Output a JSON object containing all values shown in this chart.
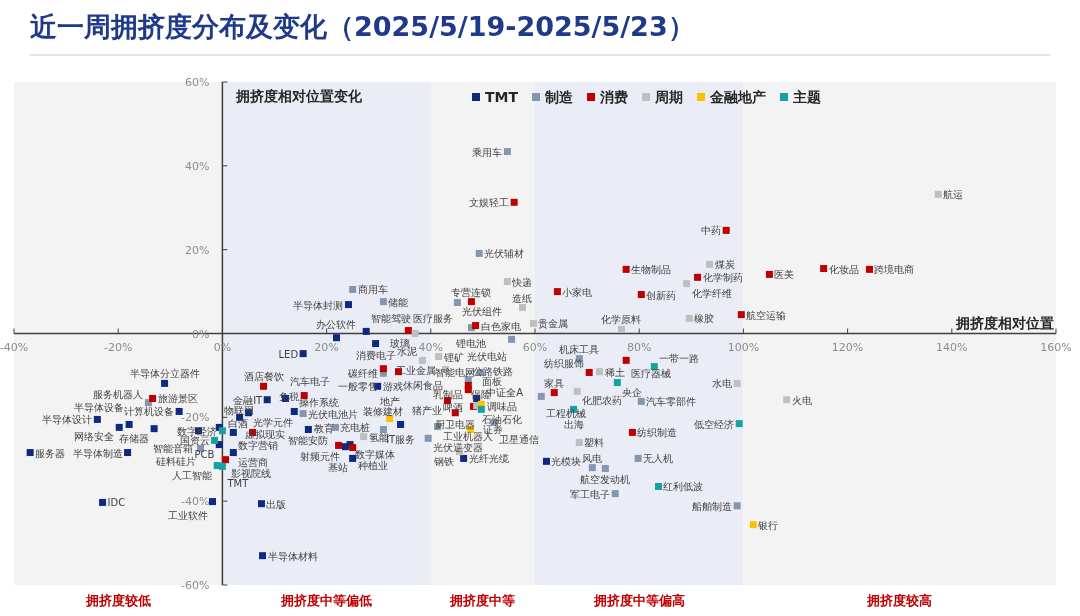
{
  "chart_data": {
    "type": "scatter",
    "title": "近一周拥挤度分布及变化（2025/5/19-2025/5/23）",
    "xlabel": "拥挤度相对位置",
    "ylabel": "拥挤度相对位置变化",
    "marker": "square",
    "legend": "top",
    "xlim": [
      -40,
      160
    ],
    "ylim": [
      -60,
      60
    ],
    "xticks": [
      {
        "value": -40,
        "label": "-40%"
      },
      {
        "value": -20,
        "label": "-20%"
      },
      {
        "value": 0,
        "label": "0%"
      },
      {
        "value": 20,
        "label": "20%"
      },
      {
        "value": 40,
        "label": "40%"
      },
      {
        "value": 60,
        "label": "60%"
      },
      {
        "value": 80,
        "label": "80%"
      },
      {
        "value": 100,
        "label": "100%"
      },
      {
        "value": 120,
        "label": "120%"
      },
      {
        "value": 140,
        "label": "140%"
      },
      {
        "value": 160,
        "label": "160%"
      }
    ],
    "yticks": [
      {
        "value": -60,
        "label": "-60%"
      },
      {
        "value": -40,
        "label": "-40%"
      },
      {
        "value": -20,
        "label": "-20%"
      },
      {
        "value": 0,
        "label": "0%"
      },
      {
        "value": 20,
        "label": "20%"
      },
      {
        "value": 40,
        "label": "40%"
      },
      {
        "value": 60,
        "label": "60%"
      }
    ],
    "bands": [
      {
        "axis": "x",
        "from": -40,
        "to": 0,
        "label": "拥挤度较低",
        "color": "#f3f3f3"
      },
      {
        "axis": "x",
        "from": 0,
        "to": 40,
        "label": "拥挤度中等偏低",
        "color": "#eaedf5"
      },
      {
        "axis": "x",
        "from": 40,
        "to": 60,
        "label": "拥挤度中等",
        "color": "#f3f3f3"
      },
      {
        "axis": "x",
        "from": 60,
        "to": 100,
        "label": "拥挤度中等偏高",
        "color": "#eaedf5"
      },
      {
        "axis": "x",
        "from": 100,
        "to": 160,
        "label": "拥挤度较高",
        "color": "#f3f3f3"
      }
    ],
    "series": [
      {
        "name": "TMT",
        "color": "#0e2a80",
        "x": [
          -11.1,
          -8.3,
          -24.0,
          -17.9,
          -19.8,
          -13.1,
          -4.6,
          -0.6,
          -36.9,
          -18.2,
          -0.6,
          -1.9,
          -23.0,
          15.5,
          21.9,
          27.6,
          29.4,
          29.8,
          12.1,
          8.6,
          5.0,
          3.3,
          13.8,
          16.5,
          2.1,
          2.1,
          34.2,
          23.6,
          24.5,
          25.0,
          7.5,
          7.7,
          24.2,
          48.8,
          46.3,
          62.2
        ],
        "values": [
          -11.9,
          -18.6,
          -20.5,
          -21.7,
          -22.4,
          -22.7,
          -23.2,
          -22.4,
          -28.4,
          -28.4,
          -26.5,
          -40.1,
          -40.3,
          -4.8,
          -1.0,
          0.5,
          -2.4,
          -12.6,
          -15.5,
          -15.8,
          -18.9,
          -20.0,
          -18.6,
          -22.9,
          -23.6,
          -28.4,
          -21.7,
          -27.0,
          -26.5,
          -29.8,
          -40.6,
          -53.0,
          6.9,
          -15.5,
          -29.8,
          -30.5
        ],
        "value_labels": [
          "半导体分立器件",
          "计算机设备",
          "半导体设计",
          "半导体设备",
          "网络安全",
          "存储器",
          "智能音箱",
          "物联网",
          "服务器",
          "半导体制造",
          "PCB",
          "工业软件",
          "IDC",
          "LED",
          "办公软件",
          "智能驾驶",
          "消费电子",
          "游戏",
          "汽车电子",
          "金融IT",
          "光学元件",
          "虚拟现实",
          "操作系统",
          "智能安防",
          "数字营销",
          "运营商",
          "IT服务",
          "射频元件",
          "数字媒体",
          "基站",
          "出版",
          "半导体材料",
          "半导体封测",
          "面板",
          "光纤光缆",
          "光模块"
        ]
      },
      {
        "name": "制造",
        "color": "#8497b0",
        "x": [
          -14.2,
          -4.2,
          15.5,
          21.7,
          30.9,
          30.9,
          41.3,
          39.5,
          54.7,
          49.3,
          25.0,
          30.9,
          45.1,
          47.8,
          55.5,
          47.2,
          49.5,
          52.2,
          61.2,
          68.5,
          80.4,
          79.8,
          71.0,
          73.5,
          75.4,
          98.8
        ],
        "values": [
          -16.5,
          -27.4,
          -19.1,
          -22.4,
          -22.9,
          -9.5,
          -22.2,
          -25.0,
          43.4,
          19.1,
          10.5,
          7.6,
          7.4,
          1.4,
          -1.4,
          -11.0,
          -9.3,
          -21.2,
          -15.0,
          -6.0,
          -16.2,
          -29.8,
          -32.0,
          -32.2,
          -38.2,
          -41.1
        ],
        "value_labels": [
          "服务机器人",
          "硅料硅片",
          "光伏电池片",
          "充电桩",
          "装修建材",
          "碳纤维",
          "工业机器人",
          "光伏逆变器",
          "乘用车",
          "光伏辅材",
          "商用车",
          "储能",
          "光伏组件",
          "锂电池",
          "光伏电站",
          "公路铁路",
          "智能电网",
          "卫星通信",
          "工程机械",
          "机床工具",
          "汽车零部件",
          "无人机",
          "风电",
          "航空发动机",
          "军工电子",
          "船舶制造"
        ]
      },
      {
        "name": "消费",
        "color": "#c00000",
        "x": [
          -13.4,
          0.6,
          7.9,
          15.7,
          5.8,
          30.9,
          33.8,
          35.7,
          22.3,
          25.0,
          56.0,
          47.8,
          48.6,
          64.3,
          47.2,
          47.2,
          43.2,
          48.2,
          44.7,
          63.7,
          70.4,
          77.5,
          78.7,
          96.7,
          77.5,
          91.2,
          80.4,
          99.6,
          105.0,
          115.4,
          124.2
        ],
        "values": [
          -15.5,
          -30.1,
          -12.6,
          -14.8,
          -23.6,
          -8.4,
          -9.1,
          0.7,
          -26.7,
          -27.2,
          31.3,
          7.6,
          1.9,
          10.0,
          -12.4,
          -13.4,
          -16.0,
          -17.4,
          -18.9,
          -14.1,
          -9.3,
          -6.4,
          -23.6,
          24.6,
          15.3,
          13.4,
          9.3,
          4.5,
          14.1,
          15.5,
          15.3
        ],
        "value_labels": [
          "旅游景区",
          "影视院线",
          "酒店餐饮",
          "免税",
          "白酒",
          "一般零售",
          "休闲食品",
          "医疗服务",
          "教育",
          "种植业",
          "文娱轻工",
          "专营连锁",
          "白色家电",
          "小家电",
          "乳制品",
          "啤酒",
          "猪产业",
          "调味品",
          "厨卫电器",
          "家具",
          "纺织服饰",
          "医疗器械",
          "纺织制造",
          "中药",
          "生物制品",
          "化学制药",
          "创新药",
          "航空运输",
          "医美",
          "化妆品",
          "跨境电商"
        ]
      },
      {
        "name": "周期",
        "color": "#bfbfbf",
        "x": [
          37.0,
          38.4,
          27.1,
          41.5,
          42.8,
          48.8,
          45.5,
          54.7,
          57.6,
          59.7,
          76.6,
          72.4,
          68.1,
          68.5,
          98.8,
          93.5,
          89.1,
          89.6,
          137.4,
          108.3
        ],
        "values": [
          0.0,
          -6.4,
          -24.6,
          -5.5,
          -8.6,
          -17.2,
          -28.2,
          12.4,
          6.2,
          2.4,
          1.0,
          -9.1,
          -13.8,
          -26.0,
          -11.9,
          16.5,
          11.9,
          3.6,
          33.2,
          -15.8
        ],
        "value_labels": [
          "玻璃",
          "水泥",
          "氢能",
          "锂矿",
          "工业金属",
          "石油石化",
          "钢铁",
          "快递",
          "造纸",
          "贵金属",
          "化学原料",
          "稀土",
          "化肥农药",
          "塑料",
          "水电",
          "煤炭",
          "化学纤维",
          "橡胶",
          "航运",
          "火电"
        ]
      },
      {
        "name": "金融地产",
        "color": "#ffc000",
        "x": [
          32.1,
          49.7,
          47.6,
          101.9
        ],
        "values": [
          -20.3,
          -16.9,
          -22.9,
          -45.6
        ],
        "value_labels": [
          "地产",
          "保险",
          "证券",
          "银行"
        ]
      },
      {
        "name": "主题",
        "color": "#17a2a2",
        "x": [
          0.0,
          -1.5,
          -1.0,
          0.0,
          49.7,
          67.4,
          75.8,
          82.9,
          83.7,
          99.2
        ],
        "values": [
          -23.2,
          -25.5,
          -31.5,
          -31.7,
          -18.1,
          -18.1,
          -11.7,
          -7.9,
          -36.5,
          -21.5
        ],
        "value_labels": [
          "数字经济",
          "国资云",
          "人工智能",
          "TMT",
          "中证全A",
          "出海",
          "央企",
          "一带一路",
          "红利低波",
          "低空经济"
        ]
      }
    ]
  }
}
